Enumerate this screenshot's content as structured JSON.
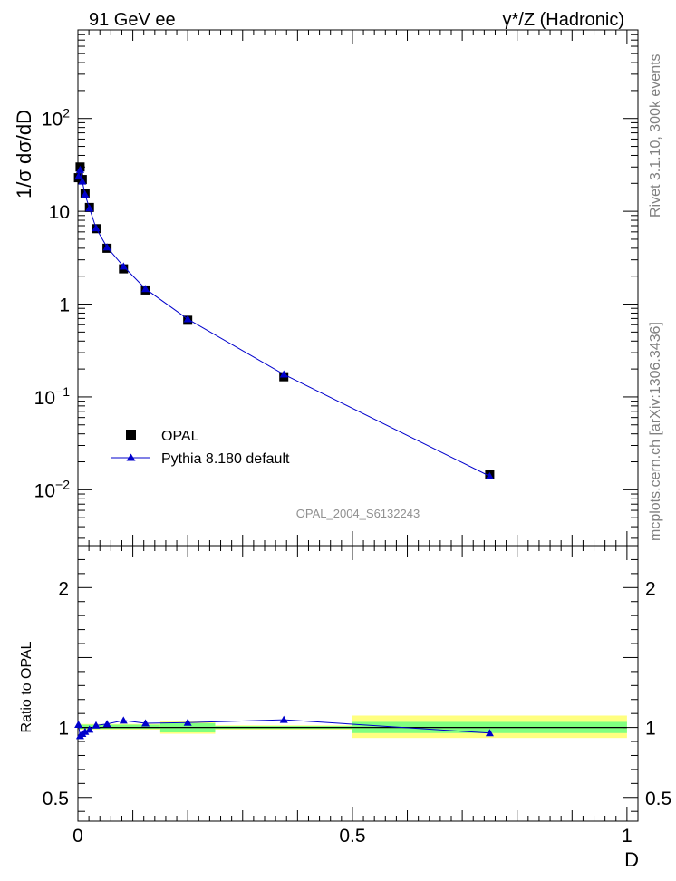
{
  "header": {
    "left": "91 GeV ee",
    "right": "γ*/Z (Hadronic)"
  },
  "side_labels": {
    "rivet": "Rivet 3.1.10,  300k events",
    "mcplots": "mcplots.cern.ch [arXiv:1306.3436]"
  },
  "colors": {
    "mc": "#0000cc",
    "data": "#000000",
    "band_inner": "#80ff80",
    "band_outer": "#ffff80",
    "watermark": "#909090"
  },
  "chart_data": [
    {
      "type": "scatter",
      "panel": "main",
      "title": "",
      "ylabel": "1/σ dσ/dD",
      "xlabel": "",
      "yscale": "log",
      "xlim": [
        0,
        1.02
      ],
      "ylim": [
        0.0025,
        900
      ],
      "y_ticks": [
        {
          "value": 0.01,
          "label_base": "10",
          "label_exp": "−2"
        },
        {
          "value": 0.1,
          "label_base": "10",
          "label_exp": "−1"
        },
        {
          "value": 1,
          "label_base": "1",
          "label_exp": ""
        },
        {
          "value": 10,
          "label_base": "10",
          "label_exp": ""
        },
        {
          "value": 100,
          "label_base": "10",
          "label_exp": "2"
        }
      ],
      "watermark": "OPAL_2004_S6132243",
      "legend": {
        "position": "bottom-left",
        "entries": [
          {
            "label": "OPAL",
            "marker": "square"
          },
          {
            "label": "Pythia 8.180 default",
            "marker": "triangle-line"
          }
        ]
      },
      "series": [
        {
          "name": "OPAL",
          "x": [
            0.001,
            0.004,
            0.008,
            0.013,
            0.021,
            0.033,
            0.053,
            0.083,
            0.123,
            0.2,
            0.375,
            0.75
          ],
          "y": [
            23.0,
            30.0,
            22.0,
            15.7,
            11.0,
            6.5,
            4.0,
            2.4,
            1.42,
            0.67,
            0.165,
            0.0145
          ]
        },
        {
          "name": "Pythia 8.180 default",
          "x": [
            0.001,
            0.004,
            0.008,
            0.013,
            0.021,
            0.033,
            0.053,
            0.083,
            0.123,
            0.2,
            0.375,
            0.75
          ],
          "y": [
            23.8,
            28.0,
            21.0,
            15.2,
            10.8,
            6.6,
            4.1,
            2.55,
            1.46,
            0.69,
            0.175,
            0.014
          ]
        }
      ]
    },
    {
      "type": "line",
      "panel": "ratio",
      "ylabel": "Ratio to OPAL",
      "xlabel": "D",
      "xlim": [
        0,
        1.02
      ],
      "ylim": [
        0.33,
        2.3
      ],
      "x_ticks": [
        {
          "value": 0,
          "label": "0"
        },
        {
          "value": 0.5,
          "label": "0.5"
        },
        {
          "value": 1,
          "label": "1"
        }
      ],
      "y_ticks": [
        {
          "value": 0.5,
          "label": "0.5"
        },
        {
          "value": 1,
          "label": "1"
        },
        {
          "value": 2,
          "label": "2"
        }
      ],
      "bands": [
        {
          "x0": 0.0,
          "x1": 0.15,
          "inner": [
            0.99,
            1.02
          ],
          "outer": [
            0.985,
            1.025
          ]
        },
        {
          "x0": 0.15,
          "x1": 0.25,
          "inner": [
            0.965,
            1.03
          ],
          "outer": [
            0.955,
            1.045
          ]
        },
        {
          "x0": 0.25,
          "x1": 0.5,
          "inner": [
            0.99,
            1.01
          ],
          "outer": [
            0.985,
            1.015
          ]
        },
        {
          "x0": 0.5,
          "x1": 1.0,
          "inner": [
            0.96,
            1.04
          ],
          "outer": [
            0.925,
            1.085
          ]
        }
      ],
      "series": [
        {
          "name": "Pythia 8.180 default",
          "x": [
            0.001,
            0.004,
            0.008,
            0.013,
            0.021,
            0.033,
            0.053,
            0.083,
            0.123,
            0.2,
            0.375,
            0.75
          ],
          "y": [
            1.02,
            0.94,
            0.955,
            0.97,
            0.985,
            1.015,
            1.025,
            1.05,
            1.03,
            1.035,
            1.055,
            0.96
          ]
        }
      ]
    }
  ]
}
